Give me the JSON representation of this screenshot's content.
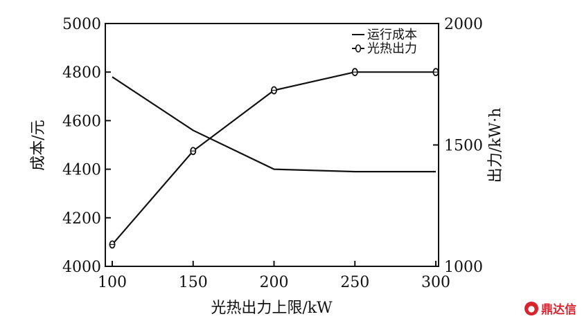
{
  "chart_data": {
    "type": "line",
    "title": "",
    "xlabel": "光热出力上限/kW",
    "ylabel_left": "成本/元",
    "ylabel_right": "出力/kW·h",
    "x": [
      100,
      150,
      200,
      250,
      300
    ],
    "xticks": [
      "100",
      "150",
      "200",
      "250",
      "300"
    ],
    "xlim": [
      100,
      300
    ],
    "ylim_left": [
      4000,
      5000
    ],
    "yticks_left": [
      "4000",
      "4200",
      "4400",
      "4600",
      "4800",
      "5000"
    ],
    "ylim_right": [
      1000,
      2000
    ],
    "yticks_right": [
      "1000",
      "1500",
      "2000"
    ],
    "legend_position": "top-right",
    "grid": false,
    "series": [
      {
        "name": "运行成本",
        "axis": "left",
        "marker": "none",
        "values": [
          4780,
          4560,
          4400,
          4390,
          4390
        ]
      },
      {
        "name": "光热出力",
        "axis": "right",
        "marker": "circle",
        "values": [
          1090,
          1475,
          1725,
          1800,
          1800
        ]
      }
    ]
  },
  "watermark": {
    "text": "鼎达信",
    "logo_icon": "chat-bubble-logo-icon"
  }
}
